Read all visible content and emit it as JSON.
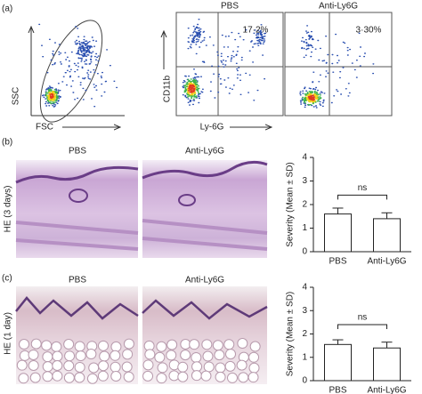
{
  "figure": {
    "panel_a": {
      "label": "(a)",
      "gate_y_label": "SSC",
      "gate_x_label": "FSC",
      "conditions": [
        "PBS",
        "Anti-Ly6G"
      ],
      "y_label": "CD11b",
      "x_label": "Ly-6G",
      "percentages": [
        "17·2%",
        "3·30%"
      ]
    },
    "panel_b": {
      "label": "(b)",
      "row_label": "HE (3 days)",
      "conditions": [
        "PBS",
        "Anti-Ly6G"
      ]
    },
    "panel_c": {
      "label": "(c)",
      "row_label": "HE (1 day)",
      "conditions": [
        "PBS",
        "Anti-Ly6G"
      ]
    }
  },
  "chart_data": [
    {
      "type": "bar",
      "y_label": "Severity (Mean ± SD)",
      "categories": [
        "PBS",
        "Anti-Ly6G"
      ],
      "values": [
        1.6,
        1.4
      ],
      "errors": [
        0.25,
        0.25
      ],
      "ylim": [
        0,
        4
      ],
      "yticks": [
        0,
        1,
        2,
        3,
        4
      ],
      "color": "#ffffff",
      "annotation": "ns"
    },
    {
      "type": "bar",
      "y_label": "Severity (Mean ± SD)",
      "categories": [
        "PBS",
        "Anti-Ly6G"
      ],
      "values": [
        1.55,
        1.4
      ],
      "errors": [
        0.2,
        0.25
      ],
      "ylim": [
        0,
        4
      ],
      "yticks": [
        0,
        1,
        2,
        3,
        4
      ],
      "color": "#ffffff",
      "annotation": "ns"
    }
  ]
}
